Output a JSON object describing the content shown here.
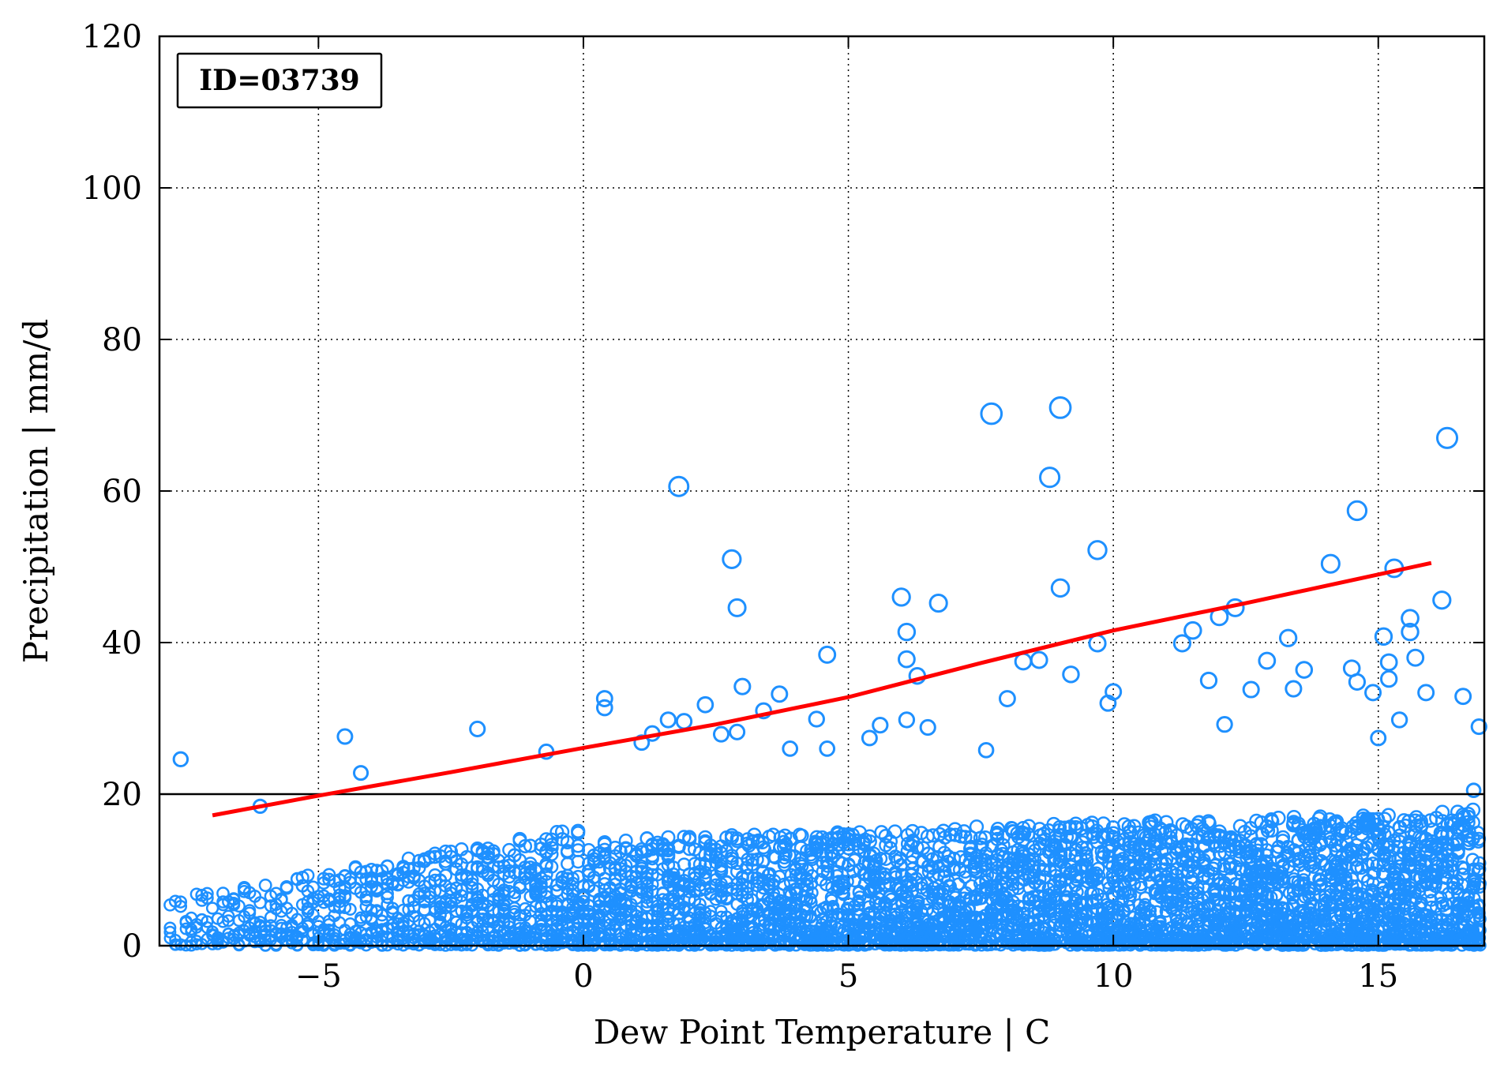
{
  "chart_data": {
    "type": "scatter",
    "annotation": "ID=03739",
    "xlabel": "Dew Point Temperature | C",
    "ylabel": "Precipitation | mm/d",
    "xlim": [
      -8,
      17
    ],
    "ylim": [
      0,
      120
    ],
    "xticks": [
      -5,
      0,
      5,
      10,
      15
    ],
    "xtick_labels": [
      "−5",
      "0",
      "5",
      "10",
      "15"
    ],
    "yticks": [
      0,
      20,
      40,
      60,
      80,
      100,
      120
    ],
    "ytick_labels": [
      "0",
      "20",
      "40",
      "60",
      "80",
      "100",
      "120"
    ],
    "grid": true,
    "colors": {
      "points": "#1e90ff",
      "fit_line": "#ff0000",
      "threshold_line": "#000000"
    },
    "threshold": 20,
    "fit_line": {
      "x": [
        -7,
        -5,
        -2.5,
        0,
        2.5,
        5,
        7.5,
        10,
        12.5,
        16
      ],
      "y": [
        17.2,
        19.8,
        22.9,
        26.1,
        29.2,
        32.8,
        37.3,
        41.6,
        45.2,
        50.5
      ]
    },
    "series": [
      {
        "x": [
          -7.6,
          -6.1,
          -4.5,
          -4.2,
          -2.0,
          -0.7,
          0.4,
          0.4,
          1.1,
          1.3,
          1.6,
          1.8,
          1.9,
          2.3,
          2.6,
          2.8,
          2.9,
          2.9,
          3.0,
          3.4,
          3.7,
          3.9,
          4.4,
          4.6,
          4.6,
          5.4,
          5.6,
          6.0,
          6.1,
          6.1,
          6.1,
          6.3,
          6.5,
          6.7,
          7.6,
          7.7,
          8.0,
          8.3,
          8.6,
          8.8,
          9.0,
          9.0,
          9.2,
          9.7,
          9.7,
          9.9,
          10.0,
          11.3,
          11.5,
          11.8,
          12.0,
          12.1,
          12.3,
          12.6,
          12.9,
          13.3,
          13.4,
          13.6,
          14.1,
          14.5,
          14.6,
          14.6,
          14.9,
          15.0,
          15.1,
          15.2,
          15.2,
          15.3,
          15.4,
          15.6,
          15.6,
          15.7,
          15.9,
          16.2,
          16.3,
          16.6,
          16.8,
          16.9
        ],
        "y": [
          24.6,
          18.4,
          27.6,
          22.8,
          28.6,
          25.6,
          32.6,
          31.4,
          26.8,
          28.0,
          29.8,
          60.6,
          29.6,
          31.8,
          27.9,
          51.0,
          44.6,
          28.2,
          34.2,
          31.0,
          33.2,
          26.0,
          29.9,
          38.4,
          26.0,
          27.4,
          29.1,
          46.0,
          41.4,
          37.8,
          29.8,
          35.6,
          28.8,
          45.2,
          25.8,
          70.2,
          32.6,
          37.5,
          37.7,
          61.8,
          71.0,
          47.2,
          35.8,
          52.2,
          39.9,
          32.0,
          33.5,
          39.9,
          41.6,
          35.0,
          43.4,
          29.2,
          44.6,
          33.8,
          37.6,
          40.6,
          33.9,
          36.4,
          50.4,
          36.6,
          57.4,
          34.8,
          33.4,
          27.4,
          40.8,
          37.4,
          35.2,
          49.8,
          29.8,
          43.2,
          41.4,
          38.0,
          33.4,
          45.6,
          67.0,
          32.9,
          20.5,
          28.9
        ]
      }
    ]
  }
}
